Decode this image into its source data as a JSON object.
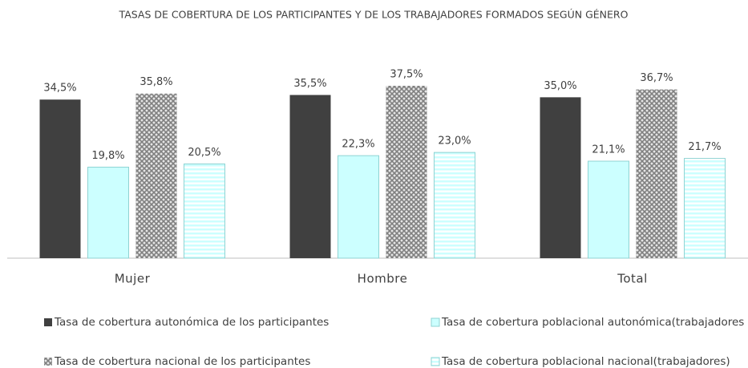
{
  "chart_data": {
    "type": "bar",
    "title": "TASAS DE COBERTURA DE LOS PARTICIPANTES Y DE LOS TRABAJADORES FORMADOS SEGÚN GÉNERO",
    "categories": [
      "Mujer",
      "Hombre",
      "Total"
    ],
    "series": [
      {
        "name": "Tasa de cobertura autonómica de los participantes",
        "color": "#404040",
        "pattern": "solid",
        "values": [
          34.5,
          35.5,
          35.0
        ],
        "value_labels": [
          "34,5%",
          "35,5%",
          "35,0%"
        ]
      },
      {
        "name": "Tasa de cobertura poblacional autonómica(trabajadores",
        "color": "#ccffff",
        "pattern": "solid",
        "values": [
          19.8,
          22.3,
          21.1
        ],
        "value_labels": [
          "19,8%",
          "22,3%",
          "21,1%"
        ]
      },
      {
        "name": "Tasa de cobertura nacional de los participantes",
        "color": "#808080",
        "pattern": "crosshatch",
        "values": [
          35.8,
          37.5,
          36.7
        ],
        "value_labels": [
          "35,8%",
          "37,5%",
          "36,7%"
        ]
      },
      {
        "name": "Tasa de cobertura poblacional nacional(trabajadores)",
        "color": "#ccffff",
        "pattern": "hstripes",
        "values": [
          20.5,
          23.0,
          21.7
        ],
        "value_labels": [
          "20,5%",
          "23,0%",
          "21,7%"
        ]
      }
    ],
    "grid": false,
    "legend": "bottom"
  }
}
